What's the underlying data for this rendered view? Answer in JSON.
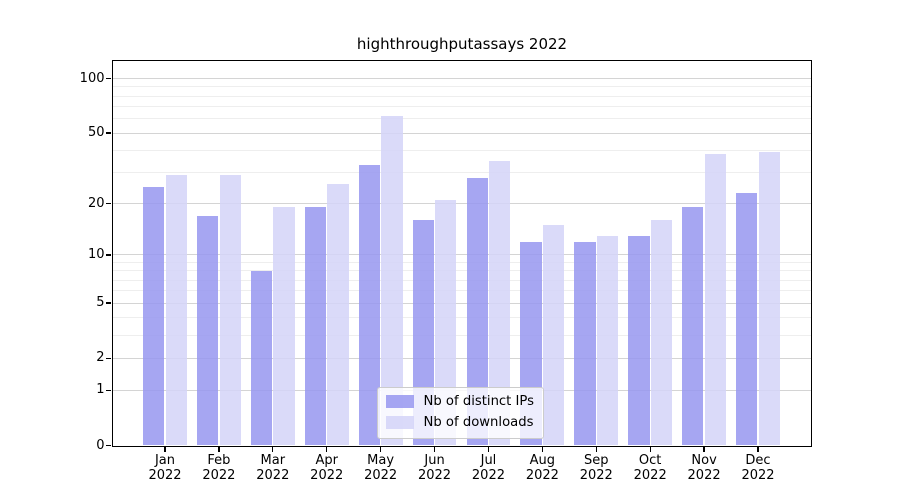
{
  "chart_data": {
    "type": "bar",
    "title": "highthroughputassays 2022",
    "x_categories": [
      "Jan",
      "Feb",
      "Mar",
      "Apr",
      "May",
      "Jun",
      "Jul",
      "Aug",
      "Sep",
      "Oct",
      "Nov",
      "Dec"
    ],
    "x_year_label": "2022",
    "series": [
      {
        "name": "Nb of distinct IPs",
        "color": "rgba(150,150,240,0.85)",
        "values": [
          25,
          17,
          8,
          19,
          33,
          16,
          28,
          12,
          12,
          13,
          19,
          23
        ]
      },
      {
        "name": "Nb of downloads",
        "color": "rgba(211,211,248,0.85)",
        "values": [
          29,
          29,
          19,
          26,
          62,
          21,
          35,
          15,
          13,
          16,
          38,
          39
        ]
      }
    ],
    "y_scale": "log1p",
    "y_ticks": [
      100,
      50,
      20,
      10,
      5,
      2,
      1,
      0
    ],
    "y_minor_ticks": [
      90,
      80,
      70,
      60,
      40,
      30,
      9,
      8,
      7,
      6,
      4,
      3
    ],
    "ylim": [
      0,
      126
    ],
    "grid": {
      "major_color": "#d4d4d4",
      "minor_color": "#eeeeee",
      "orientation": "horizontal"
    },
    "legend_position": "lower center inside"
  }
}
